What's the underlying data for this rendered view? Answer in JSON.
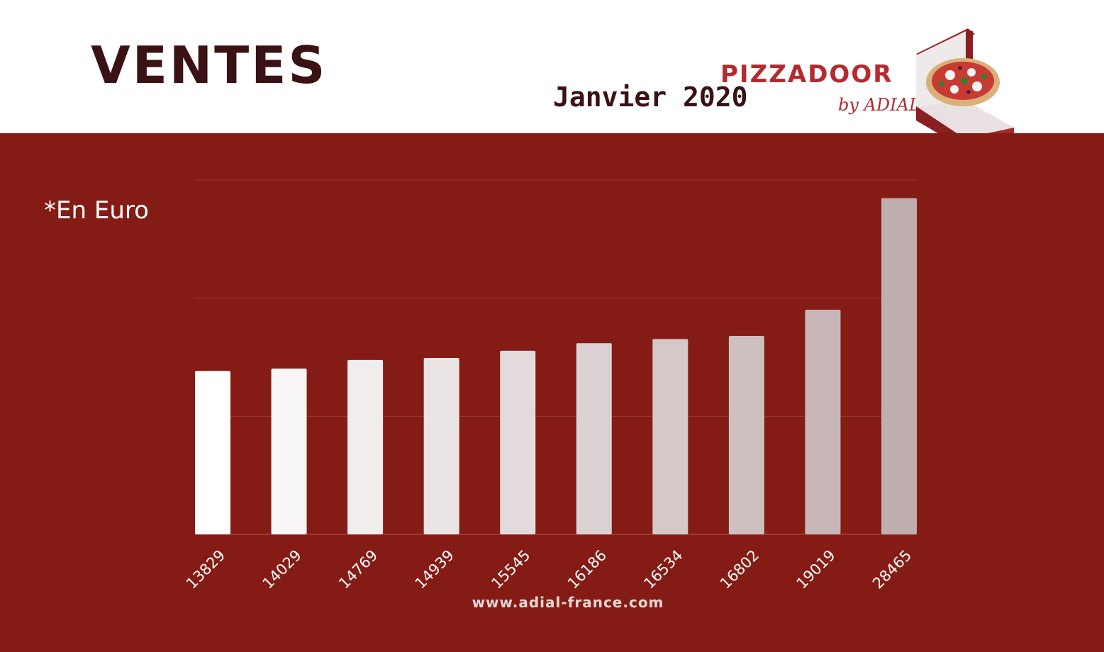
{
  "header": {
    "title": "VENTES",
    "period": "Janvier 2020",
    "logo_text": "PIZZADOOR",
    "logo_subtext": "by ADIAL"
  },
  "unit_note": "*En Euro",
  "footer": {
    "website": "www.adial-france.com"
  },
  "colors": {
    "background": "#841c15",
    "header_background": "#ffffff",
    "title": "#3a1214",
    "logo_red": "#b52a2f",
    "bar_start": "#ffffff",
    "bar_end": "#c0adae"
  },
  "chart_data": {
    "type": "bar",
    "categories": [
      "13829",
      "14029",
      "14769",
      "14939",
      "15545",
      "16186",
      "16534",
      "16802",
      "19019",
      "28465"
    ],
    "values": [
      13829,
      14029,
      14769,
      14939,
      15545,
      16186,
      16534,
      16802,
      19019,
      28465
    ],
    "title": "",
    "xlabel": "",
    "ylabel": "",
    "ylim": [
      0,
      30000
    ],
    "grid": true,
    "legend": "none"
  }
}
